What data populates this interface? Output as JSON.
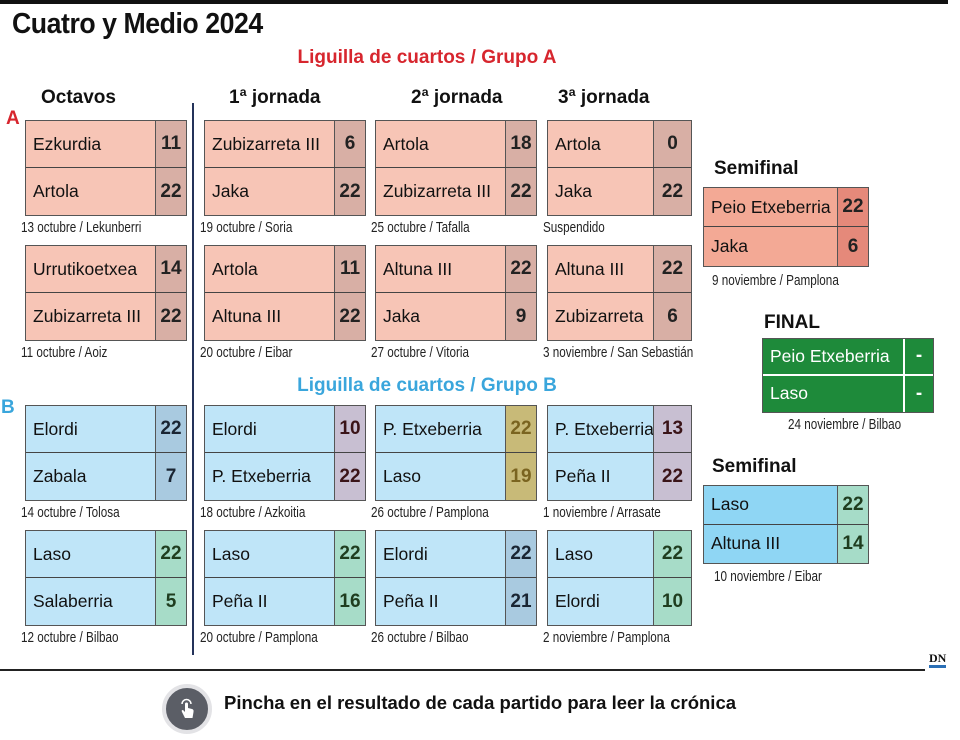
{
  "title": "Cuatro y Medio 2024",
  "group_a_header": "Liguilla de cuartos / Grupo A",
  "group_b_header": "Liguilla de cuartos / Grupo B",
  "group_a_label": "A",
  "group_b_label": "B",
  "columns": [
    "Octavos",
    "1ª jornada",
    "2ª jornada",
    "3ª jornada"
  ],
  "colors": {
    "group_a": "#d7262e",
    "group_b": "#3aa6dc",
    "final": "#1e8a3a"
  },
  "matches": [
    {
      "col": 0,
      "row": 0,
      "theme": "a",
      "p1": "Ezkurdia",
      "s1": "11",
      "p2": "Artola",
      "s2": "22",
      "date": "13 octubre / Lekunberri"
    },
    {
      "col": 0,
      "row": 1,
      "theme": "a",
      "p1": "Urrutikoetxea",
      "s1": "14",
      "p2": "Zubizarreta III",
      "s2": "22",
      "date": "11 octubre / Aoiz"
    },
    {
      "col": 1,
      "row": 0,
      "theme": "a",
      "p1": "Zubizarreta III",
      "s1": "6",
      "p2": "Jaka",
      "s2": "22",
      "date": "19 octubre / Soria"
    },
    {
      "col": 1,
      "row": 1,
      "theme": "a",
      "p1": "Artola",
      "s1": "11",
      "p2": "Altuna III",
      "s2": "22",
      "date": "20 octubre / Eibar"
    },
    {
      "col": 2,
      "row": 0,
      "theme": "a",
      "p1": "Artola",
      "s1": "18",
      "p2": "Zubizarreta III",
      "s2": "22",
      "date": "25 octubre / Tafalla"
    },
    {
      "col": 2,
      "row": 1,
      "theme": "a",
      "p1": "Altuna III",
      "s1": "22",
      "p2": "Jaka",
      "s2": "9",
      "date": "27 octubre / Vitoria"
    },
    {
      "col": 3,
      "row": 0,
      "theme": "a",
      "p1": "Artola",
      "s1": "0",
      "p2": "Jaka",
      "s2": "22",
      "date": "Suspendido"
    },
    {
      "col": 3,
      "row": 1,
      "theme": "a",
      "p1": "Altuna III",
      "s1": "22",
      "p2": "Zubizarreta",
      "s2": "6",
      "date": "3 noviembre / San Sebastián"
    },
    {
      "col": 0,
      "row": 2,
      "theme": "b-blue",
      "p1": "Elordi",
      "s1": "22",
      "p2": "Zabala",
      "s2": "7",
      "date": "14 octubre / Tolosa"
    },
    {
      "col": 0,
      "row": 3,
      "theme": "b-green",
      "p1": "Laso",
      "s1": "22",
      "p2": "Salaberria",
      "s2": "5",
      "date": "12 octubre / Bilbao"
    },
    {
      "col": 1,
      "row": 2,
      "theme": "b-purple",
      "p1": "Elordi",
      "s1": "10",
      "p2": "P. Etxeberria",
      "s2": "22",
      "date": "18 octubre / Azkoitia"
    },
    {
      "col": 1,
      "row": 3,
      "theme": "b-green",
      "p1": "Laso",
      "s1": "22",
      "p2": "Peña II",
      "s2": "16",
      "date": "20 octubre / Pamplona"
    },
    {
      "col": 2,
      "row": 2,
      "theme": "b-olive",
      "p1": "P. Etxeberria",
      "s1": "22",
      "p2": "Laso",
      "s2": "19",
      "date": "26 octubre / Pamplona"
    },
    {
      "col": 2,
      "row": 3,
      "theme": "b-blue",
      "p1": "Elordi",
      "s1": "22",
      "p2": "Peña II",
      "s2": "21",
      "date": "26 octubre / Bilbao"
    },
    {
      "col": 3,
      "row": 2,
      "theme": "b-purple",
      "p1": "P. Etxeberria",
      "s1": "13",
      "p2": "Peña II",
      "s2": "22",
      "date": "1 noviembre / Arrasate"
    },
    {
      "col": 3,
      "row": 3,
      "theme": "b-green",
      "p1": "Laso",
      "s1": "22",
      "p2": "Elordi",
      "s2": "10",
      "date": "2 noviembre / Pamplona"
    }
  ],
  "semifinal_a": {
    "header": "Semifinal",
    "p1": "Peio Etxeberria",
    "s1": "22",
    "p2": "Jaka",
    "s2": "6",
    "date": "9 noviembre / Pamplona"
  },
  "final": {
    "header": "FINAL",
    "p1": "Peio Etxeberria",
    "s1": "-",
    "p2": "Laso",
    "s2": "-",
    "date": "24 noviembre / Bilbao"
  },
  "semifinal_b": {
    "header": "Semifinal",
    "p1": "Laso",
    "s1": "22",
    "p2": "Altuna III",
    "s2": "14",
    "date": "10 noviembre / Eibar"
  },
  "footer": {
    "logo": "DN",
    "hint": "Pincha en el resultado de cada partido para leer la crónica",
    "icon": "hand-pointer-icon"
  }
}
